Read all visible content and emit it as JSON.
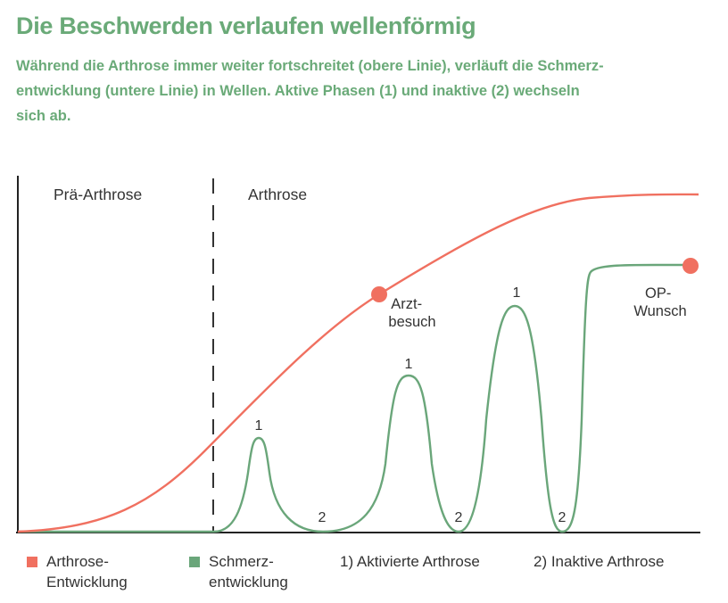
{
  "chart_data": {
    "type": "line",
    "title": "Die Beschwerden verlaufen wellenförmig",
    "subtitle": "Während die Arthrose immer weiter fortschreitet (obere Linie), verläuft die Schmerz-\nentwicklung (untere Linie) in Wellen. Aktive Phasen (1) und inaktive (2) wechseln\nsich ab.",
    "zones": [
      "Prä-Arthrose",
      "Arthrose"
    ],
    "series": [
      {
        "name": "Arthrose-\nEntwicklung",
        "color": "#f07060"
      },
      {
        "name": "Schmerz-\nentwicklung",
        "color": "#6aa67a"
      }
    ],
    "phase_labels": {
      "active": "1",
      "inactive": "2"
    },
    "annotations": {
      "doctor_visit": "Arzt-\nbesuch",
      "surgery_wish": "OP-\nWunsch"
    },
    "legend_notes": [
      "1) Aktivierte Arthrose",
      "2) Inaktive Arthrose"
    ],
    "xlabel": "",
    "ylabel": "",
    "grid": false
  },
  "colors": {
    "title": "#6aaa78",
    "arthrosis": "#f07060",
    "pain": "#6aa67a",
    "axis": "#222222",
    "text": "#333333"
  }
}
